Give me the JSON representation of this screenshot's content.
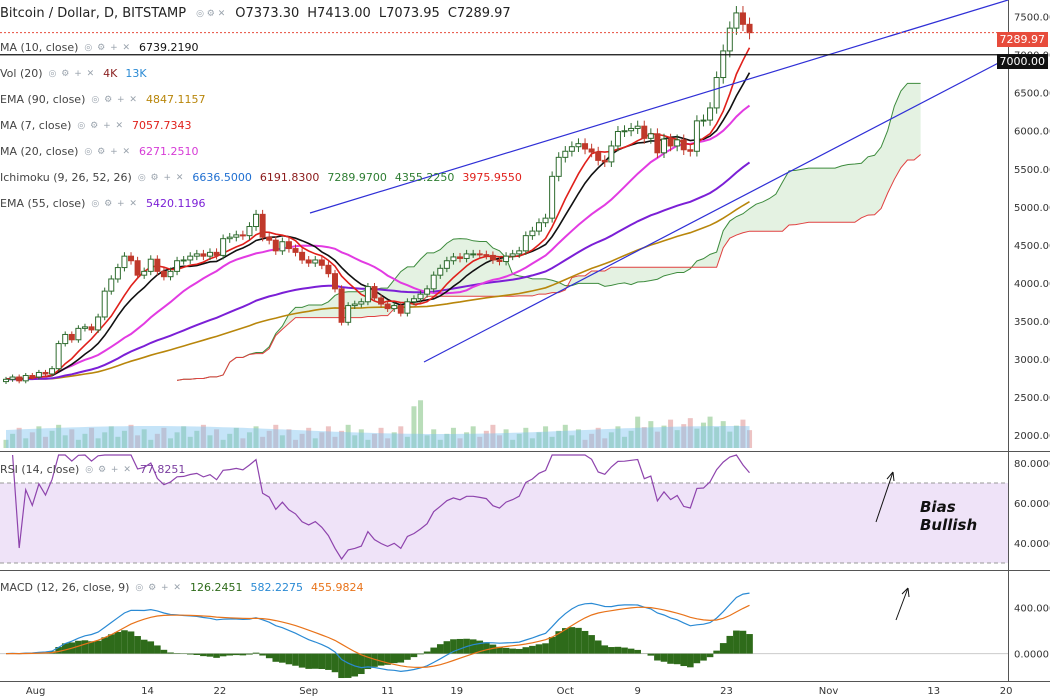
{
  "header": {
    "symbol": "Bitcoin / Dollar, D, BITSTAMP",
    "open": "O7373.30",
    "high": "H7413.00",
    "low": "L7073.95",
    "close": "C7289.97"
  },
  "legends": [
    {
      "name": "MA (10, close)",
      "values": [
        {
          "text": "6739.2190",
          "color": "#111111"
        }
      ]
    },
    {
      "name": "Vol (20)",
      "values": [
        {
          "text": "4K",
          "color": "#8a1f1f"
        },
        {
          "text": "13K",
          "color": "#2a8ad4"
        }
      ]
    },
    {
      "name": "EMA (90, close)",
      "values": [
        {
          "text": "4847.1157",
          "color": "#b8860b"
        }
      ]
    },
    {
      "name": "MA (7, close)",
      "values": [
        {
          "text": "7057.7343",
          "color": "#e0201b"
        }
      ]
    },
    {
      "name": "MA (20, close)",
      "values": [
        {
          "text": "6271.2510",
          "color": "#d63bd6"
        }
      ]
    },
    {
      "name": "Ichimoku (9, 26, 52, 26)",
      "values": [
        {
          "text": "6636.5000",
          "color": "#1f6fd1"
        },
        {
          "text": "6191.8300",
          "color": "#8b1a1a"
        },
        {
          "text": "7289.9700",
          "color": "#2e7d32"
        },
        {
          "text": "4355.2250",
          "color": "#2e7d32"
        },
        {
          "text": "3975.9550",
          "color": "#e0201b"
        }
      ]
    },
    {
      "name": "EMA (55, close)",
      "values": [
        {
          "text": "5420.1196",
          "color": "#7b1fd6"
        }
      ]
    }
  ],
  "rsi_legend": {
    "name": "RSI (14, close)",
    "value": "77.8251",
    "color": "#7b3fa0"
  },
  "macd_legend": {
    "name": "MACD (12, 26, close, 9)",
    "values": [
      {
        "text": "126.2451",
        "color": "#2e6b1a"
      },
      {
        "text": "582.2275",
        "color": "#2a8ad4"
      },
      {
        "text": "455.9824",
        "color": "#e8731a"
      }
    ]
  },
  "price_labels": {
    "current": "7289.97",
    "line": "7000.00"
  },
  "annotation": {
    "line1": "Bias",
    "line2": "Bullish"
  },
  "colors": {
    "up": "#2e6b2e",
    "down": "#c0392b",
    "trend": "#2f2fd6",
    "rsi_band": "#efe3f8"
  },
  "chart_data": [
    {
      "type": "candlestick",
      "title": "Bitcoin / Dollar, D, BITSTAMP",
      "x_tick_labels": [
        "Aug",
        "14",
        "22",
        "Sep",
        "11",
        "19",
        "Oct",
        "9",
        "23",
        "Nov",
        "13",
        "20"
      ],
      "y_tick_labels": [
        "2000.00",
        "2500.00",
        "3000.00",
        "3500.00",
        "4000.00",
        "4500.00",
        "5000.00",
        "5500.00",
        "6000.00",
        "6500.00",
        "7000.00",
        "7500.00"
      ],
      "ylim": [
        1800,
        7720
      ],
      "close_series": [
        2730,
        2760,
        2710,
        2780,
        2760,
        2820,
        2800,
        2870,
        3200,
        3320,
        3250,
        3400,
        3420,
        3380,
        3550,
        3890,
        4050,
        4200,
        4350,
        4290,
        4100,
        4150,
        4310,
        4150,
        4080,
        4150,
        4290,
        4300,
        4350,
        4380,
        4350,
        4400,
        4360,
        4580,
        4600,
        4630,
        4620,
        4740,
        4900,
        4600,
        4560,
        4420,
        4540,
        4450,
        4400,
        4300,
        4260,
        4300,
        4230,
        4120,
        3920,
        3480,
        3700,
        3720,
        3750,
        3950,
        3800,
        3720,
        3660,
        3700,
        3600,
        3750,
        3790,
        3850,
        3920,
        4100,
        4190,
        4290,
        4340,
        4320,
        4380,
        4380,
        4370,
        4360,
        4300,
        4280,
        4350,
        4380,
        4420,
        4620,
        4680,
        4790,
        4850,
        5400,
        5650,
        5730,
        5790,
        5830,
        5760,
        5720,
        5610,
        5590,
        5800,
        5990,
        6000,
        6030,
        6060,
        5900,
        5960,
        5710,
        5890,
        5800,
        5880,
        5750,
        5730,
        6130,
        6140,
        6300,
        6700,
        7050,
        7350,
        7550,
        7400,
        7290
      ],
      "annotations": [
        "Bias",
        "Bullish"
      ]
    },
    {
      "type": "line",
      "title": "RSI (14, close)",
      "y_tick_labels": [
        "40.0000",
        "60.0000",
        "80.0000"
      ],
      "ylim": [
        27,
        85
      ],
      "value": 77.8251
    },
    {
      "type": "line",
      "title": "MACD (12, 26, close, 9)",
      "y_tick_labels": [
        "0.0000",
        "400.0000"
      ],
      "ylim": [
        -230,
        720
      ],
      "series": [
        {
          "name": "histogram",
          "value": 126.2451
        },
        {
          "name": "macd",
          "value": 582.2275
        },
        {
          "name": "signal",
          "value": 455.9824
        }
      ]
    }
  ]
}
